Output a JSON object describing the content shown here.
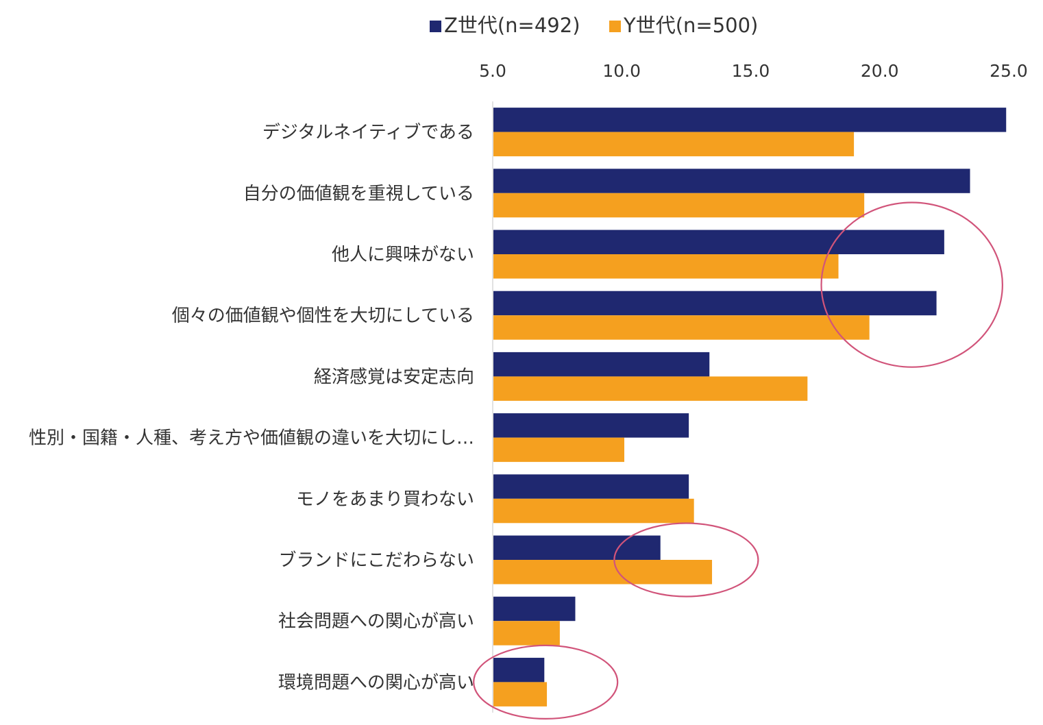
{
  "chart_data": {
    "type": "bar",
    "orientation": "horizontal",
    "title": "",
    "xlabel": "",
    "ylabel": "",
    "xlim": [
      5.0,
      25.0
    ],
    "ticks": [
      "5.0",
      "10.0",
      "15.0",
      "20.0",
      "25.0"
    ],
    "tick_values": [
      5,
      10,
      15,
      20,
      25
    ],
    "axis_position": "top",
    "grid": false,
    "legend_position": "top",
    "categories": [
      "デジタルネイティブである",
      "自分の価値観を重視している",
      "他人に興味がない",
      "個々の価値観や個性を大切にしている",
      "経済感覚は安定志向",
      "性別・国籍・人種、考え方や価値観の違いを大切にし…",
      "モノをあまり買わない",
      "ブランドにこだわらない",
      "社会問題への関心が高い",
      "環境問題への関心が高い"
    ],
    "series": [
      {
        "name": "Z世代(n=492)",
        "color": "#1f2870",
        "values": [
          24.9,
          23.5,
          22.5,
          22.2,
          13.4,
          12.6,
          12.6,
          11.5,
          8.2,
          7.0
        ]
      },
      {
        "name": "Y世代(n=500)",
        "color": "#f5a01f",
        "values": [
          19.0,
          19.4,
          18.4,
          19.6,
          17.2,
          10.1,
          12.8,
          13.5,
          7.6,
          7.1
        ]
      }
    ],
    "annotations": [
      {
        "type": "ellipse",
        "color": "#d1547a",
        "highlights": [
          "他人に興味がない",
          "個々の価値観や個性を大切にしている"
        ],
        "series": "both"
      },
      {
        "type": "ellipse",
        "color": "#d1547a",
        "highlights": [
          "ブランドにこだわらない"
        ],
        "series": "both"
      },
      {
        "type": "ellipse",
        "color": "#d1547a",
        "highlights": [
          "環境問題への関心が高い"
        ],
        "series": "both"
      }
    ]
  }
}
